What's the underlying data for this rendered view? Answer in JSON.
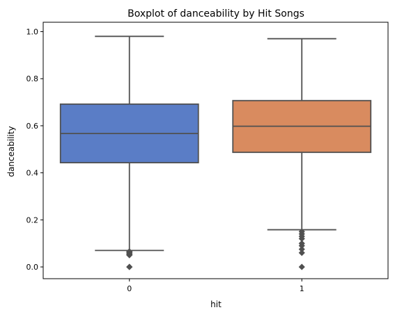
{
  "chart_data": {
    "type": "boxplot",
    "title": "Boxplot of danceability by Hit Songs",
    "xlabel": "hit",
    "ylabel": "danceability",
    "categories": [
      "0",
      "1"
    ],
    "ylim": [
      -0.05,
      1.04
    ],
    "yticks": [
      0.0,
      0.2,
      0.4,
      0.6,
      0.8,
      1.0
    ],
    "ytick_labels": [
      "0.0",
      "0.2",
      "0.4",
      "0.6",
      "0.8",
      "1.0"
    ],
    "grid": false,
    "legend": "none",
    "boxes": [
      {
        "category": "0",
        "color": "#5a7dc6",
        "whisker_low": 0.07,
        "q1": 0.443,
        "median": 0.567,
        "q3": 0.692,
        "whisker_high": 0.98,
        "outliers": [
          0.0,
          0.0,
          0.05,
          0.053,
          0.056,
          0.06,
          0.063,
          0.066
        ]
      },
      {
        "category": "1",
        "color": "#d98b5f",
        "whisker_low": 0.158,
        "q1": 0.487,
        "median": 0.598,
        "q3": 0.707,
        "whisker_high": 0.97,
        "outliers": [
          0.0,
          0.06,
          0.075,
          0.09,
          0.1,
          0.12,
          0.13,
          0.14,
          0.15
        ]
      }
    ]
  }
}
